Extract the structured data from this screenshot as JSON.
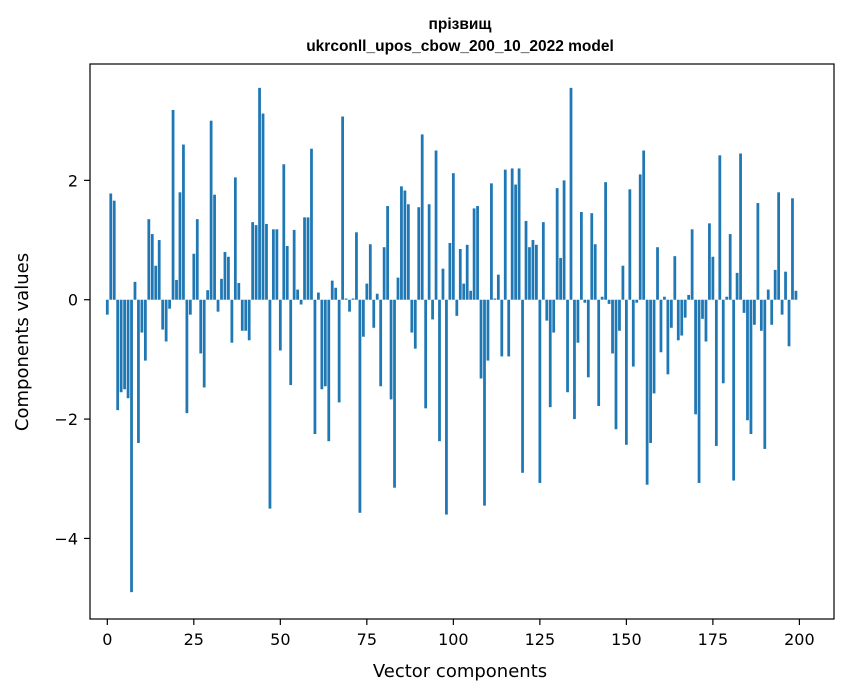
{
  "chart_data": {
    "type": "bar",
    "title": "прізвищ",
    "subtitle": "ukrconll_upos_cbow_200_10_2022 model",
    "xlabel": "Vector components",
    "ylabel": "Components values",
    "xlim": [
      -5,
      210
    ],
    "ylim": [
      -5.35,
      3.95
    ],
    "xticks": [
      0,
      25,
      50,
      75,
      100,
      125,
      150,
      175,
      200
    ],
    "yticks": [
      -4,
      -2,
      0,
      2
    ],
    "bar_color": "#1f77b4",
    "grid": false,
    "values": [
      -0.25,
      1.78,
      1.66,
      -1.85,
      -1.55,
      -1.5,
      -1.65,
      -4.9,
      0.3,
      -2.4,
      -0.55,
      -1.02,
      1.35,
      1.1,
      0.57,
      1.0,
      -0.5,
      -0.7,
      -0.15,
      3.18,
      0.33,
      1.8,
      2.6,
      -1.9,
      -0.25,
      0.77,
      1.35,
      -0.9,
      -1.47,
      0.16,
      3.0,
      1.76,
      -0.2,
      0.35,
      0.8,
      0.72,
      -0.72,
      2.05,
      0.28,
      -0.52,
      -0.52,
      -0.68,
      1.3,
      1.25,
      3.55,
      3.12,
      1.27,
      -3.5,
      1.18,
      1.18,
      -0.85,
      2.27,
      0.9,
      -1.43,
      1.17,
      0.17,
      -0.08,
      1.38,
      1.38,
      2.53,
      -2.25,
      0.12,
      -1.5,
      -1.45,
      -2.37,
      0.32,
      0.2,
      -1.72,
      3.07,
      0.02,
      -0.2,
      0.02,
      1.13,
      -3.57,
      -0.62,
      0.27,
      0.93,
      -0.47,
      0.1,
      -1.45,
      0.88,
      1.57,
      -1.67,
      -3.15,
      0.37,
      1.9,
      1.83,
      1.6,
      -0.55,
      -0.82,
      1.55,
      2.77,
      -1.82,
      1.6,
      -0.33,
      2.5,
      -2.37,
      0.52,
      -3.6,
      0.95,
      2.12,
      -0.27,
      0.85,
      0.27,
      0.92,
      0.15,
      1.53,
      1.57,
      -1.32,
      -3.45,
      -1.02,
      1.95,
      0.02,
      0.42,
      -0.95,
      2.18,
      -0.95,
      2.2,
      1.93,
      2.2,
      -2.9,
      1.32,
      0.88,
      1.0,
      0.92,
      -3.07,
      1.3,
      -0.35,
      -1.8,
      -0.55,
      1.87,
      0.7,
      2.0,
      -1.55,
      3.55,
      -2.0,
      -0.72,
      1.47,
      -0.05,
      -1.3,
      1.45,
      0.93,
      -1.78,
      0.05,
      1.97,
      -0.07,
      -0.9,
      -2.17,
      -0.52,
      0.57,
      -2.43,
      1.85,
      -1.12,
      -0.05,
      2.1,
      2.5,
      -3.1,
      -2.4,
      -1.57,
      0.88,
      -0.88,
      0.05,
      -1.25,
      -0.47,
      0.73,
      -0.68,
      -0.6,
      -0.3,
      0.08,
      1.18,
      -1.92,
      -3.07,
      -0.32,
      -0.7,
      1.28,
      0.72,
      -2.45,
      2.42,
      -1.4,
      0.05,
      1.1,
      -3.03,
      0.45,
      2.45,
      -0.22,
      -2.02,
      -2.25,
      -0.42,
      1.62,
      -0.52,
      -2.5,
      0.17,
      -0.42,
      0.5,
      1.8,
      -0.25,
      0.47,
      -0.78,
      1.7,
      0.15
    ]
  }
}
